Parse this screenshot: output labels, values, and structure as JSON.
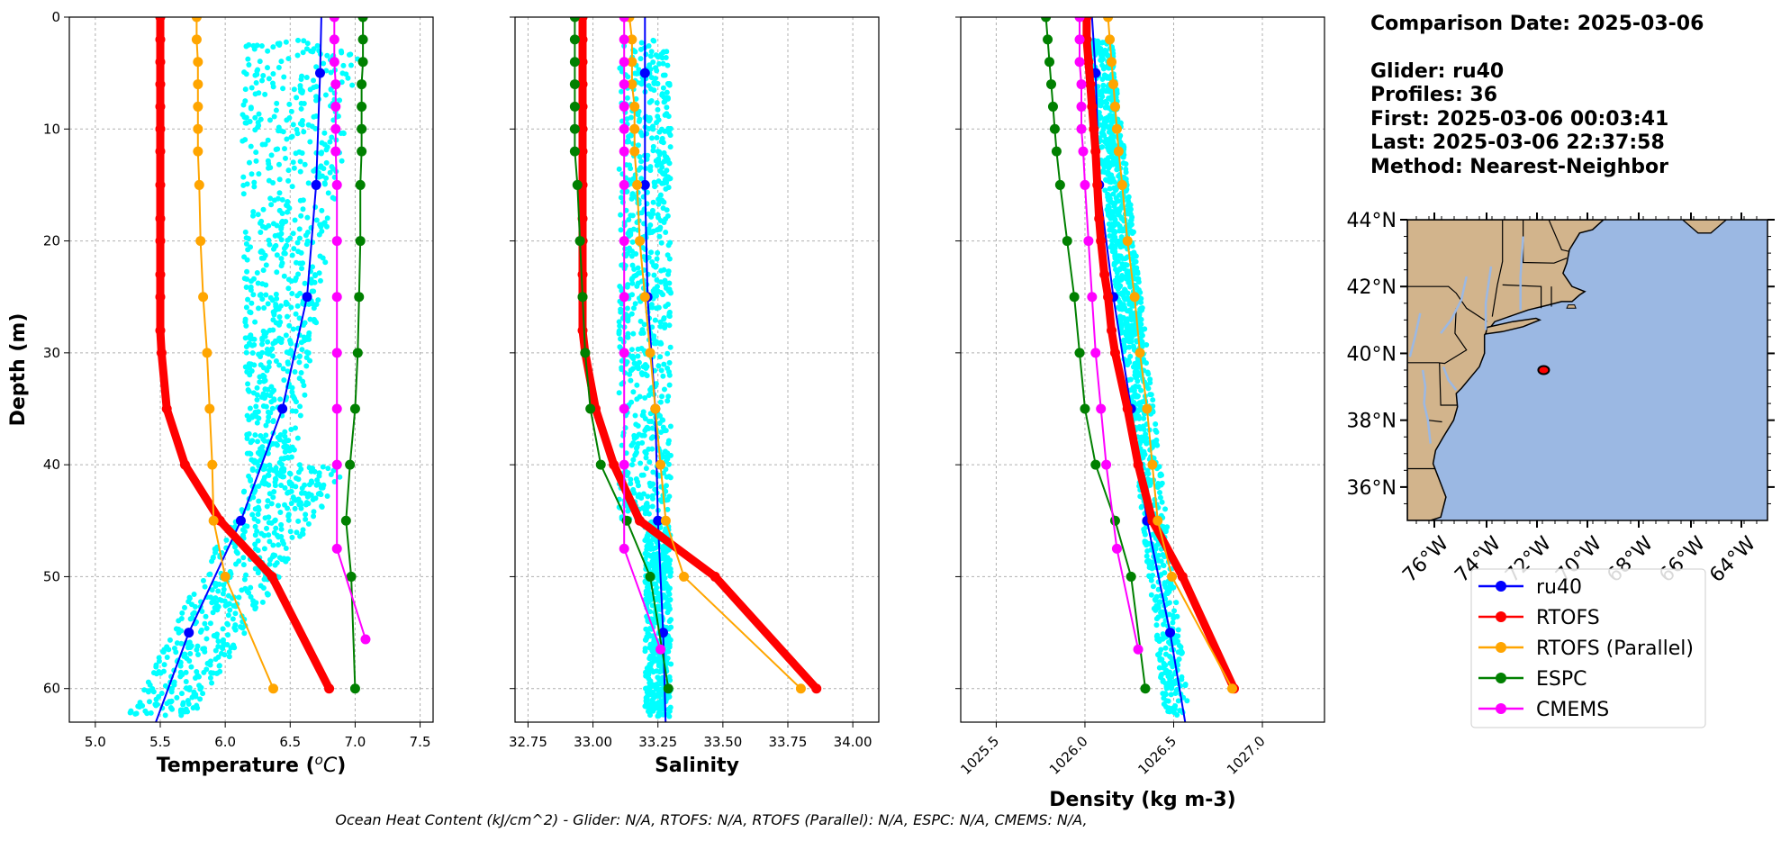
{
  "info": {
    "date_line": "Comparison Date: 2025-03-06",
    "glider_line": "Glider: ru40",
    "profiles_line": "Profiles: 36",
    "first_line": "First: 2025-03-06 00:03:41",
    "last_line": "Last: 2025-03-06 22:37:58",
    "method_line": "Method: Nearest-Neighbor"
  },
  "caption": "Ocean Heat Content (kJ/cm^2) - Glider: N/A,  RTOFS: N/A,  RTOFS (Parallel): N/A,  ESPC: N/A,  CMEMS: N/A,",
  "colors": {
    "ru40": "#0000ff",
    "rtofs": "#ff0000",
    "rtofs_parallel": "#ffa500",
    "espc": "#008000",
    "cmems": "#ff00ff",
    "glider_obs": "#00ffff",
    "land": "#d2b48c",
    "ocean": "#9bb8e3",
    "grid": "#b0b0b0"
  },
  "legend": [
    {
      "key": "ru40",
      "label": "ru40"
    },
    {
      "key": "rtofs",
      "label": "RTOFS"
    },
    {
      "key": "rtofs_parallel",
      "label": "RTOFS (Parallel)"
    },
    {
      "key": "espc",
      "label": "ESPC"
    },
    {
      "key": "cmems",
      "label": "CMEMS"
    }
  ],
  "map": {
    "lat_labels": [
      "44°N",
      "42°N",
      "40°N",
      "38°N",
      "36°N"
    ],
    "lon_labels": [
      "76°W",
      "74°W",
      "72°W",
      "70°W",
      "68°W",
      "66°W",
      "64°W"
    ],
    "glider_location": {
      "lon": -71.7,
      "lat": 39.5
    }
  },
  "chart_data": [
    {
      "type": "line",
      "title": "",
      "xlabel": "Temperature (°C)",
      "ylabel": "Depth (m)",
      "xlim": [
        4.8,
        7.6
      ],
      "ylim": [
        63,
        0
      ],
      "xticks": [
        5.0,
        5.5,
        6.0,
        6.5,
        7.0,
        7.5
      ],
      "xtick_labels": [
        "5.0",
        "5.5",
        "6.0",
        "6.5",
        "7.0",
        "7.5"
      ],
      "yticks": [
        0,
        10,
        20,
        30,
        40,
        50,
        60
      ],
      "ytick_labels": [
        "0",
        "10",
        "20",
        "30",
        "40",
        "50",
        "60"
      ],
      "grid": true,
      "glider_scatter": {
        "upper": {
          "x_range": [
            6.1,
            7.1
          ],
          "depth_range": [
            2,
            42
          ]
        },
        "lower": {
          "x_range": [
            5.25,
            6.9
          ],
          "depth_range": [
            40,
            62.5
          ]
        }
      },
      "series": [
        {
          "name": "ru40",
          "key": "ru40",
          "depth": [
            5,
            15,
            25,
            35,
            45,
            55
          ],
          "values": [
            6.73,
            6.7,
            6.63,
            6.44,
            6.12,
            5.72
          ],
          "ext_depth": [
            0,
            63.5
          ],
          "ext_values": [
            6.74,
            5.45
          ]
        },
        {
          "name": "RTOFS",
          "key": "rtofs",
          "depth": [
            0,
            2,
            4,
            6,
            8,
            10,
            12,
            15,
            18,
            20,
            23,
            25,
            28,
            30,
            35,
            40,
            45,
            50,
            60
          ],
          "values": [
            5.5,
            5.5,
            5.5,
            5.5,
            5.5,
            5.5,
            5.5,
            5.5,
            5.5,
            5.5,
            5.5,
            5.5,
            5.5,
            5.51,
            5.55,
            5.69,
            5.96,
            6.36,
            6.8
          ]
        },
        {
          "name": "RTOFS (Parallel)",
          "key": "rtofs_parallel",
          "depth": [
            0,
            2,
            4,
            6,
            8,
            10,
            12,
            15,
            20,
            25,
            30,
            35,
            40,
            45,
            50,
            60
          ],
          "values": [
            5.78,
            5.78,
            5.79,
            5.79,
            5.79,
            5.79,
            5.79,
            5.8,
            5.81,
            5.83,
            5.86,
            5.88,
            5.9,
            5.91,
            6.0,
            6.37
          ]
        },
        {
          "name": "ESPC",
          "key": "espc",
          "depth": [
            0,
            2,
            4,
            6,
            8,
            10,
            12,
            15,
            20,
            25,
            30,
            35,
            40,
            45,
            50,
            60
          ],
          "values": [
            7.06,
            7.06,
            7.06,
            7.05,
            7.05,
            7.05,
            7.05,
            7.04,
            7.04,
            7.03,
            7.02,
            7.0,
            6.96,
            6.93,
            6.97,
            7.0
          ]
        },
        {
          "name": "CMEMS",
          "key": "cmems",
          "depth": [
            0,
            2,
            4,
            6,
            8,
            10,
            12,
            15,
            20,
            25,
            30,
            35,
            40,
            47.5,
            55.6
          ],
          "values": [
            6.84,
            6.84,
            6.84,
            6.85,
            6.85,
            6.85,
            6.85,
            6.86,
            6.86,
            6.86,
            6.86,
            6.86,
            6.86,
            6.86,
            7.08
          ]
        }
      ]
    },
    {
      "type": "line",
      "title": "",
      "xlabel": "Salinity",
      "ylabel": "",
      "xlim": [
        32.7,
        34.1
      ],
      "ylim": [
        63,
        0
      ],
      "xticks": [
        32.75,
        33.0,
        33.25,
        33.5,
        33.75,
        34.0
      ],
      "xtick_labels": [
        "32.75",
        "33.00",
        "33.25",
        "33.50",
        "33.75",
        "34.00"
      ],
      "grid": true,
      "glider_scatter": {
        "upper": {
          "x_range": [
            33.1,
            33.3
          ],
          "depth_range": [
            2,
            45
          ]
        },
        "lower": {
          "x_range": [
            33.2,
            33.3
          ],
          "depth_range": [
            45,
            62.5
          ]
        }
      },
      "series": [
        {
          "name": "ru40",
          "key": "ru40",
          "depth": [
            5,
            15,
            25,
            35,
            45,
            55
          ],
          "values": [
            33.2,
            33.2,
            33.21,
            33.24,
            33.25,
            33.27
          ],
          "ext_depth": [
            0,
            63.5
          ],
          "ext_values": [
            33.2,
            33.28
          ]
        },
        {
          "name": "RTOFS",
          "key": "rtofs",
          "depth": [
            0,
            2,
            4,
            6,
            8,
            10,
            12,
            15,
            18,
            20,
            23,
            25,
            28,
            30,
            35,
            40,
            45,
            50,
            60
          ],
          "values": [
            32.96,
            32.96,
            32.96,
            32.96,
            32.96,
            32.96,
            32.96,
            32.96,
            32.96,
            32.96,
            32.96,
            32.96,
            32.96,
            32.97,
            33.01,
            33.08,
            33.18,
            33.47,
            33.86
          ]
        },
        {
          "name": "RTOFS (Parallel)",
          "key": "rtofs_parallel",
          "depth": [
            0,
            2,
            4,
            6,
            8,
            10,
            12,
            15,
            20,
            25,
            30,
            35,
            40,
            45,
            50,
            60
          ],
          "values": [
            33.14,
            33.15,
            33.15,
            33.15,
            33.16,
            33.16,
            33.16,
            33.17,
            33.18,
            33.2,
            33.22,
            33.24,
            33.26,
            33.28,
            33.35,
            33.8
          ]
        },
        {
          "name": "ESPC",
          "key": "espc",
          "depth": [
            0,
            2,
            4,
            6,
            8,
            10,
            12,
            15,
            20,
            25,
            30,
            35,
            40,
            45,
            50,
            60
          ],
          "values": [
            32.93,
            32.93,
            32.93,
            32.93,
            32.93,
            32.93,
            32.93,
            32.94,
            32.95,
            32.96,
            32.97,
            32.99,
            33.03,
            33.13,
            33.22,
            33.29
          ]
        },
        {
          "name": "CMEMS",
          "key": "cmems",
          "depth": [
            0,
            2,
            4,
            6,
            8,
            10,
            12,
            15,
            20,
            25,
            30,
            35,
            40,
            47.5,
            56.5
          ],
          "values": [
            33.12,
            33.12,
            33.12,
            33.12,
            33.12,
            33.12,
            33.12,
            33.12,
            33.12,
            33.12,
            33.12,
            33.12,
            33.12,
            33.12,
            33.26
          ]
        }
      ]
    },
    {
      "type": "line",
      "title": "",
      "xlabel": "Density (kg m-3)",
      "ylabel": "",
      "xlim": [
        1025.3,
        1027.35
      ],
      "ylim": [
        63,
        0
      ],
      "xticks": [
        1025.5,
        1026.0,
        1026.5,
        1027.0
      ],
      "xtick_labels": [
        "1025.5",
        "1026.0",
        "1026.5",
        "1027.0"
      ],
      "grid": true,
      "glider_scatter": {
        "upper": {
          "x_range": [
            1026.02,
            1026.28
          ],
          "depth_range": [
            2,
            30
          ]
        },
        "lower": {
          "x_range": [
            1026.15,
            1026.6
          ],
          "depth_range": [
            30,
            62.5
          ]
        }
      },
      "series": [
        {
          "name": "ru40",
          "key": "ru40",
          "depth": [
            5,
            15,
            25,
            35,
            45,
            55
          ],
          "values": [
            1026.06,
            1026.08,
            1026.16,
            1026.26,
            1026.35,
            1026.48
          ],
          "ext_depth": [
            0,
            63.5
          ],
          "ext_values": [
            1026.04,
            1026.57
          ]
        },
        {
          "name": "RTOFS",
          "key": "rtofs",
          "depth": [
            0,
            2,
            4,
            6,
            8,
            10,
            12,
            15,
            18,
            20,
            23,
            25,
            28,
            30,
            35,
            40,
            45,
            50,
            60
          ],
          "values": [
            1026.01,
            1026.01,
            1026.02,
            1026.03,
            1026.04,
            1026.05,
            1026.06,
            1026.07,
            1026.08,
            1026.09,
            1026.11,
            1026.13,
            1026.15,
            1026.17,
            1026.24,
            1026.3,
            1026.38,
            1026.55,
            1026.84
          ]
        },
        {
          "name": "RTOFS (Parallel)",
          "key": "rtofs_parallel",
          "depth": [
            0,
            2,
            4,
            6,
            8,
            10,
            12,
            15,
            20,
            25,
            30,
            35,
            40,
            45,
            50,
            60
          ],
          "values": [
            1026.13,
            1026.14,
            1026.15,
            1026.16,
            1026.17,
            1026.18,
            1026.19,
            1026.21,
            1026.24,
            1026.28,
            1026.31,
            1026.35,
            1026.38,
            1026.41,
            1026.49,
            1026.83
          ]
        },
        {
          "name": "ESPC",
          "key": "espc",
          "depth": [
            0,
            2,
            4,
            6,
            8,
            10,
            12,
            15,
            20,
            25,
            30,
            35,
            40,
            45,
            50,
            60
          ],
          "values": [
            1025.78,
            1025.79,
            1025.8,
            1025.81,
            1025.82,
            1025.83,
            1025.84,
            1025.86,
            1025.9,
            1025.94,
            1025.97,
            1026.0,
            1026.06,
            1026.17,
            1026.26,
            1026.34
          ]
        },
        {
          "name": "CMEMS",
          "key": "cmems",
          "depth": [
            0,
            2,
            4,
            6,
            8,
            10,
            12,
            15,
            20,
            25,
            30,
            35,
            40,
            47.5,
            56.5
          ],
          "values": [
            1025.97,
            1025.97,
            1025.97,
            1025.98,
            1025.98,
            1025.98,
            1025.99,
            1026.0,
            1026.02,
            1026.04,
            1026.06,
            1026.09,
            1026.12,
            1026.18,
            1026.3
          ]
        }
      ]
    }
  ]
}
